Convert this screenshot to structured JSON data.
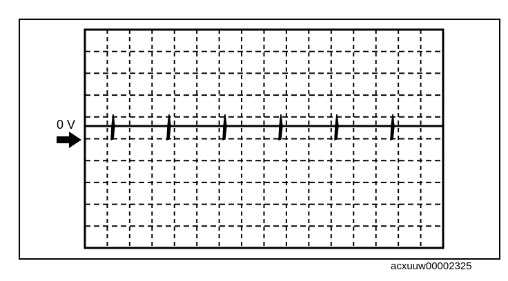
{
  "waveform": {
    "zero_label": "0 V",
    "grid": {
      "columns": 16,
      "rows": 10
    },
    "zero_division_from_top": 4.4,
    "pulse_count": 6,
    "pulse_description": "narrow bipolar spikes on 0 V baseline"
  },
  "figure_id": "acxuuw00002325",
  "colors": {
    "ink": "#000000",
    "background": "#ffffff"
  }
}
